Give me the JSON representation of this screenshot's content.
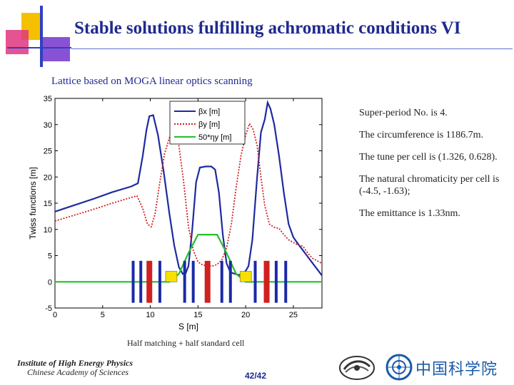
{
  "slide": {
    "title": "Stable solutions fulfilling achromatic conditions VI",
    "title_glyph": "",
    "subtitle": "Lattice based on MOGA linear optics scanning",
    "notes": [
      "Super-period No. is 4.",
      "The circumference is 1186.7m.",
      "The tune per cell is (1.326, 0.628).",
      "The natural chromaticity per cell is (-4.5, -1.63);",
      "The emittance is 1.33nm."
    ],
    "caption": "Half matching + half standard cell",
    "institute_line1": "Institute of High Energy Physics",
    "institute_line2": "Chinese Academy of Sciences",
    "page": "42/42",
    "logo_text": "中国科学院",
    "colors": {
      "title": "#1f2a8f",
      "deco_yellow": "#f5c000",
      "deco_purple": "#7b3fd0",
      "deco_blue": "#3040c0"
    }
  },
  "chart_data": {
    "type": "line",
    "xlabel": "S [m]",
    "ylabel": "Twiss functions [m]",
    "xlim": [
      0,
      28
    ],
    "ylim": [
      -5,
      35
    ],
    "xticks": [
      0,
      5,
      10,
      15,
      20,
      25
    ],
    "yticks": [
      -5,
      0,
      5,
      10,
      15,
      20,
      25,
      30,
      35
    ],
    "grid": false,
    "legend_position": "top-center",
    "series": [
      {
        "name": "βx [m]",
        "color": "#1f2a9f",
        "style": "solid",
        "x": [
          0,
          2,
          4,
          6,
          8,
          8.7,
          9.2,
          9.6,
          9.9,
          10.3,
          10.8,
          11.4,
          12,
          12.5,
          13,
          13.4,
          13.7,
          14,
          14.4,
          14.8,
          15.2,
          15.8,
          16.4,
          16.8,
          17.2,
          17.6,
          18,
          18.4,
          18.9,
          19.3,
          19.8,
          20.3,
          20.7,
          21.2,
          21.6,
          22,
          22.3,
          22.6,
          23,
          23.5,
          24,
          24.5,
          25,
          25.5,
          26,
          26.5,
          27,
          27.5,
          28
        ],
        "y": [
          13.4,
          14.6,
          15.8,
          17.1,
          18.2,
          18.8,
          24,
          29,
          31.6,
          31.8,
          28,
          21,
          13,
          7,
          2.8,
          1.5,
          1.6,
          3,
          10,
          19,
          21.8,
          22,
          22,
          21.4,
          17,
          9,
          3.5,
          1.8,
          1.5,
          1.3,
          1.5,
          3,
          8,
          20,
          28.5,
          31,
          34.2,
          33,
          30,
          24,
          17,
          11,
          8.5,
          7.2,
          6,
          4.8,
          3.6,
          2.4,
          1.2
        ]
      },
      {
        "name": "βy [m]",
        "color": "#d02020",
        "style": "dotted",
        "x": [
          0,
          2,
          4,
          6,
          8,
          8.6,
          9.2,
          9.7,
          10.1,
          10.5,
          11,
          11.5,
          12,
          12.5,
          13,
          13.5,
          14,
          14.5,
          15,
          15.5,
          16,
          16.5,
          17,
          17.5,
          18,
          18.5,
          19,
          19.5,
          20,
          20.4,
          20.8,
          21.2,
          21.6,
          22,
          22.5,
          23,
          23.5,
          24,
          24.5,
          25,
          25.5,
          26,
          26.5,
          27,
          27.5,
          28
        ],
        "y": [
          11.6,
          12.7,
          13.8,
          15,
          16.1,
          16.4,
          14,
          11,
          10.5,
          13,
          19,
          24.5,
          27.5,
          28,
          26,
          19,
          10.5,
          6,
          3.8,
          3.2,
          3.1,
          3,
          3.3,
          4.2,
          6.5,
          11,
          18,
          24,
          28,
          30.2,
          29,
          26,
          20,
          14.5,
          11,
          10.4,
          10.2,
          9,
          8,
          7.5,
          7,
          6.8,
          5.5,
          4.5,
          4,
          3.5
        ]
      },
      {
        "name": "50*ηy [m]",
        "color": "#22c02a",
        "style": "solid",
        "x": [
          0,
          11,
          12,
          13,
          14,
          15,
          17,
          18,
          19,
          20,
          21,
          28
        ],
        "y": [
          0,
          0,
          0,
          1.5,
          5.5,
          9,
          9,
          5.5,
          1.5,
          0,
          0,
          0
        ]
      }
    ],
    "legend_labels": [
      "βx [m]",
      "βy [m]",
      "50*ηy [m]"
    ],
    "magnets": [
      {
        "s": 8.2,
        "type": "quad",
        "color": "#1a2aa8",
        "h": 4
      },
      {
        "s": 9.0,
        "type": "quad",
        "color": "#1a2aa8",
        "h": 4
      },
      {
        "s": 9.9,
        "type": "dipole",
        "color": "#d02020",
        "h": 4
      },
      {
        "s": 11.0,
        "type": "quad",
        "color": "#1a2aa8",
        "h": 4
      },
      {
        "s": 12.2,
        "type": "sext",
        "color": "#f5e000",
        "h": 2
      },
      {
        "s": 13.6,
        "type": "quad",
        "color": "#1a2aa8",
        "h": 4
      },
      {
        "s": 14.5,
        "type": "quad",
        "color": "#1a2aa8",
        "h": 4
      },
      {
        "s": 16.0,
        "type": "dipole",
        "color": "#d02020",
        "h": 4
      },
      {
        "s": 17.5,
        "type": "quad",
        "color": "#1a2aa8",
        "h": 4
      },
      {
        "s": 18.4,
        "type": "quad",
        "color": "#1a2aa8",
        "h": 4
      },
      {
        "s": 20.0,
        "type": "sext",
        "color": "#f5e000",
        "h": 2
      },
      {
        "s": 21.0,
        "type": "quad",
        "color": "#1a2aa8",
        "h": 4
      },
      {
        "s": 22.2,
        "type": "dipole",
        "color": "#d02020",
        "h": 4
      },
      {
        "s": 23.2,
        "type": "quad",
        "color": "#1a2aa8",
        "h": 4
      },
      {
        "s": 24.2,
        "type": "quad",
        "color": "#1a2aa8",
        "h": 4
      }
    ]
  }
}
